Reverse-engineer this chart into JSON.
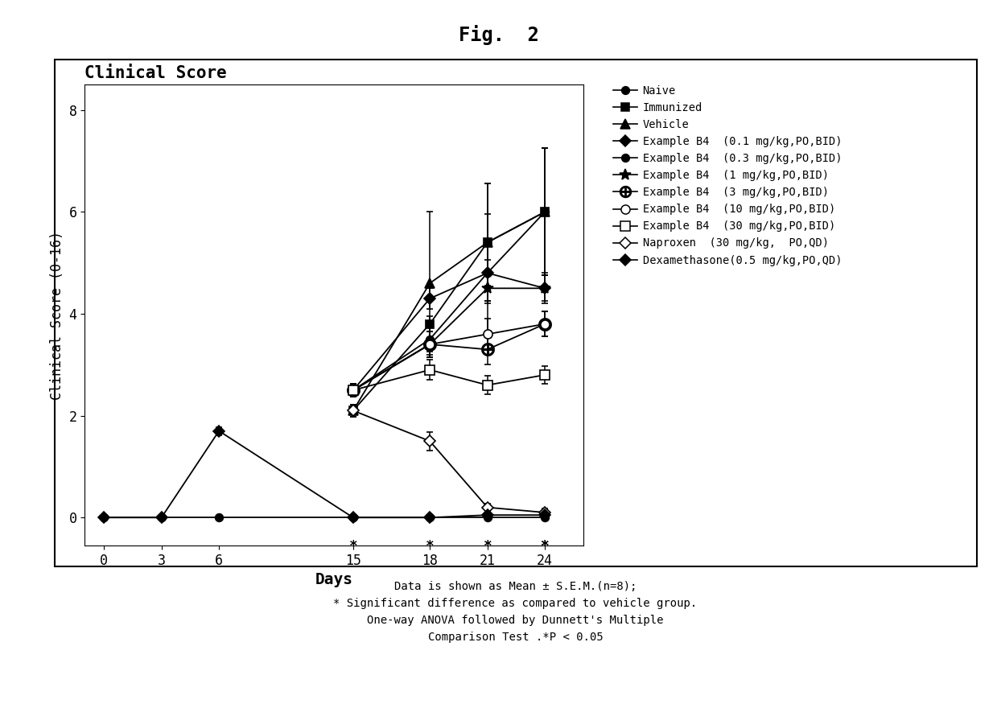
{
  "title": "Fig.  2",
  "plot_title": "Clinical Score",
  "xlabel": "Days",
  "ylabel": "Clinical Score (0-16)",
  "series": [
    {
      "label": "Naive",
      "marker": "o",
      "fillstyle": "full",
      "ms": 7,
      "days": [
        0,
        3,
        6,
        13,
        17,
        20,
        23
      ],
      "values": [
        0.0,
        0.0,
        0.0,
        0.0,
        0.0,
        0.0,
        0.0
      ],
      "errors": [
        0.0,
        0.0,
        0.0,
        0.0,
        0.0,
        0.0,
        0.0
      ],
      "stars": [
        false,
        false,
        false,
        true,
        true,
        true,
        true
      ]
    },
    {
      "label": "Immunized",
      "marker": "s",
      "fillstyle": "full",
      "ms": 7,
      "days": [
        13,
        17,
        20,
        23
      ],
      "values": [
        2.1,
        3.8,
        5.4,
        6.0
      ],
      "errors": [
        0.12,
        0.15,
        1.15,
        1.25
      ],
      "stars": [
        false,
        false,
        false,
        false
      ]
    },
    {
      "label": "Vehicle",
      "marker": "^",
      "fillstyle": "full",
      "ms": 8,
      "days": [
        13,
        17,
        20,
        23
      ],
      "values": [
        2.1,
        4.6,
        5.4,
        6.0
      ],
      "errors": [
        0.12,
        1.4,
        1.15,
        1.25
      ],
      "stars": [
        false,
        false,
        false,
        false
      ]
    },
    {
      "label": "Example B4  (0.1 mg/kg,PO,BID)",
      "marker": "D",
      "fillstyle": "full",
      "ms": 7,
      "days": [
        13,
        17,
        20,
        23
      ],
      "values": [
        2.5,
        4.3,
        4.8,
        4.5
      ],
      "errors": [
        0.12,
        0.2,
        0.25,
        0.25
      ],
      "stars": [
        false,
        false,
        false,
        false
      ]
    },
    {
      "label": "Example B4  (0.3 mg/kg,PO,BID)",
      "marker": "o",
      "fillstyle": "full",
      "ms": 7,
      "days": [
        13,
        17,
        20,
        23
      ],
      "values": [
        2.5,
        3.5,
        4.8,
        6.0
      ],
      "errors": [
        0.12,
        0.25,
        1.15,
        1.25
      ],
      "stars": [
        false,
        false,
        false,
        false
      ]
    },
    {
      "label": "Example B4  (1 mg/kg,PO,BID)",
      "marker": "*",
      "fillstyle": "full",
      "ms": 11,
      "days": [
        13,
        17,
        20,
        23
      ],
      "values": [
        2.5,
        3.4,
        4.5,
        4.5
      ],
      "errors": [
        0.12,
        0.25,
        0.3,
        0.3
      ],
      "stars": [
        false,
        false,
        false,
        true
      ]
    },
    {
      "label": "Example B4  (3 mg/kg,PO,BID)",
      "marker": "plus_circle",
      "fillstyle": "none",
      "ms": 9,
      "days": [
        13,
        17,
        20,
        23
      ],
      "values": [
        2.5,
        3.4,
        3.3,
        3.8
      ],
      "errors": [
        0.12,
        0.25,
        0.3,
        0.25
      ],
      "stars": [
        false,
        false,
        false,
        true
      ]
    },
    {
      "label": "Example B4  (10 mg/kg,PO,BID)",
      "marker": "o",
      "fillstyle": "none",
      "ms": 8,
      "days": [
        13,
        17,
        20,
        23
      ],
      "values": [
        2.5,
        3.4,
        3.6,
        3.8
      ],
      "errors": [
        0.12,
        0.25,
        0.3,
        0.25
      ],
      "stars": [
        false,
        false,
        false,
        true
      ]
    },
    {
      "label": "Example B4  (30 mg/kg,PO,BID)",
      "marker": "s",
      "fillstyle": "none",
      "ms": 8,
      "days": [
        13,
        17,
        20,
        23
      ],
      "values": [
        2.5,
        2.9,
        2.6,
        2.8
      ],
      "errors": [
        0.12,
        0.2,
        0.18,
        0.18
      ],
      "stars": [
        false,
        false,
        true,
        true
      ]
    },
    {
      "label": "Naproxen  (30 mg/kg,  PO,QD)",
      "marker": "D",
      "fillstyle": "none",
      "ms": 7,
      "days": [
        13,
        17,
        20,
        23
      ],
      "values": [
        2.1,
        1.5,
        0.2,
        0.1
      ],
      "errors": [
        0.12,
        0.18,
        0.08,
        0.08
      ],
      "stars": [
        true,
        true,
        true,
        true
      ]
    },
    {
      "label": "Dexamethasone(0.5 mg/kg,PO,QD)",
      "marker": "D",
      "fillstyle": "full",
      "ms": 7,
      "days": [
        0,
        3,
        6,
        13,
        17,
        20,
        23
      ],
      "values": [
        0.0,
        0.0,
        1.7,
        0.0,
        0.0,
        0.05,
        0.05
      ],
      "errors": [
        0.0,
        0.0,
        0.08,
        0.0,
        0.0,
        0.04,
        0.04
      ],
      "stars": [
        false,
        false,
        false,
        true,
        true,
        true,
        true
      ]
    }
  ],
  "footnote": "Data is shown as Mean ± S.E.M.(n=8);\n* Significant difference as compared to vehicle group.\nOne-way ANOVA followed by Dunnett's Multiple\nComparison Test .*P < 0.05",
  "bg_color": "#ffffff"
}
